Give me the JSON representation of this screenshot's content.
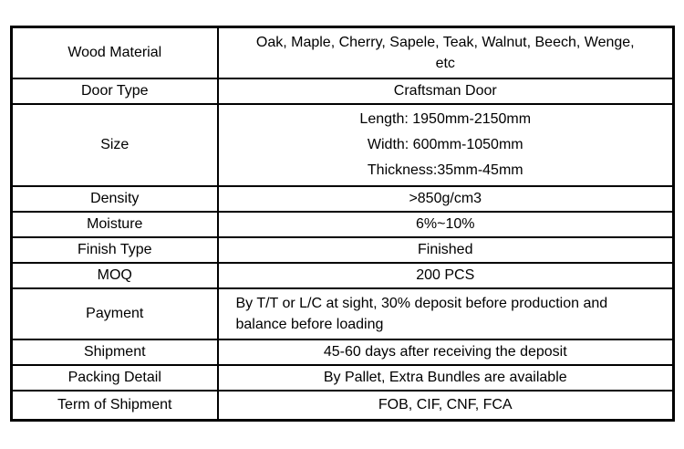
{
  "colors": {
    "background": "#ffffff",
    "border": "#000000",
    "text": "#000000"
  },
  "table": {
    "rows": [
      {
        "label": "Wood Material",
        "lines": [
          "Oak, Maple, Cherry, Sapele, Teak, Walnut, Beech, Wenge,",
          "etc"
        ]
      },
      {
        "label": "Door Type",
        "value": "Craftsman Door"
      },
      {
        "label": "Size",
        "lines": [
          "Length: 1950mm-2150mm",
          "Width: 600mm-1050mm",
          "Thickness:35mm-45mm"
        ]
      },
      {
        "label": "Density",
        "value": ">850g/cm3"
      },
      {
        "label": "Moisture",
        "value": "6%~10%"
      },
      {
        "label": "Finish Type",
        "value": "Finished"
      },
      {
        "label": "MOQ",
        "value": "200 PCS"
      },
      {
        "label": "Payment",
        "lines": [
          "By T/T or L/C at sight, 30% deposit before production and",
          "balance before loading"
        ]
      },
      {
        "label": "Shipment",
        "value": "45-60 days after receiving the deposit"
      },
      {
        "label": "Packing Detail",
        "value": "By Pallet, Extra Bundles are available"
      },
      {
        "label": "Term of Shipment",
        "value": "FOB, CIF, CNF, FCA"
      }
    ]
  }
}
